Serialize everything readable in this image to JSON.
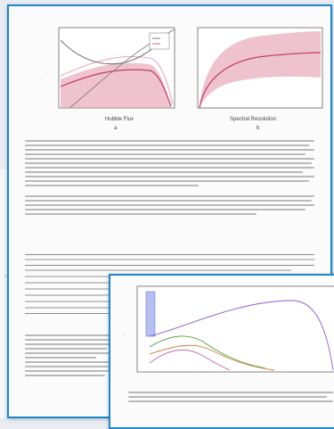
{
  "scene": {
    "description": "Stacked scanned paper pages",
    "accent_color": "#1a88c9",
    "band_color": "#e7a2b6",
    "line_color": "#c13b62"
  },
  "main_page": {
    "figure_left": {
      "xlabel": "Hubble Flux",
      "caption_letter": "a",
      "legend": [
        "----",
        "----"
      ]
    },
    "figure_right": {
      "xlabel": "Spectral Resolution",
      "caption_letter": "b"
    }
  },
  "inset_page": {
    "figure": {
      "series_colors": [
        "#8a5bd6",
        "#4f9e3c",
        "#d07a33",
        "#c56aa8"
      ]
    }
  }
}
